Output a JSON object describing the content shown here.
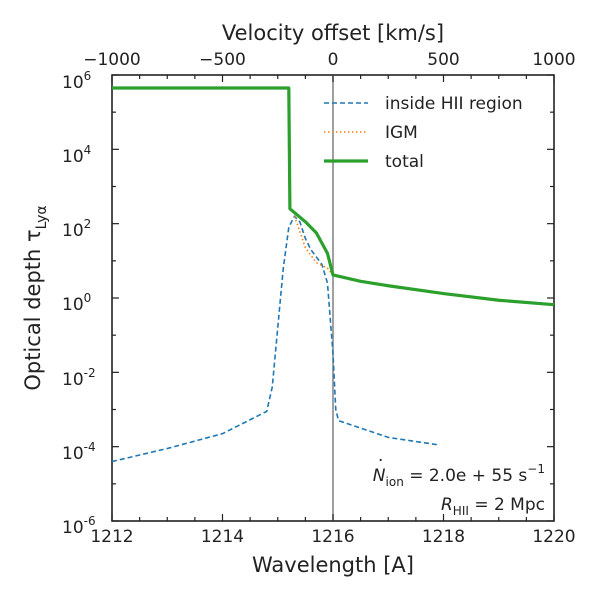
{
  "chart_data": {
    "type": "line",
    "xlabel": "Wavelength [A]",
    "ylabel_main": "Optical depth τ",
    "ylabel_sub": "Lyα",
    "x2label": "Velocity offset [km/s]",
    "xlim": [
      1212,
      1220
    ],
    "x2lim": [
      -1000,
      1000
    ],
    "ylim_log10": [
      -6,
      6
    ],
    "yscale": "log",
    "grid": false,
    "legend_position": "top-right",
    "x_ticks": [
      "1212",
      "1214",
      "1216",
      "1218",
      "1220"
    ],
    "x2_ticks": [
      "−1000",
      "−500",
      "0",
      "500",
      "1000"
    ],
    "y_tick_exponents": [
      "6",
      "4",
      "2",
      "0",
      "-2",
      "-4",
      "-6"
    ],
    "vline_x": 1216,
    "series": [
      {
        "name": "inside HII region",
        "color": "#1f77b4",
        "style": "dashed",
        "points": [
          [
            1212,
            -4.4
          ],
          [
            1213,
            -4.05
          ],
          [
            1214,
            -3.65
          ],
          [
            1214.8,
            -3.05
          ],
          [
            1214.9,
            -2.4
          ],
          [
            1215.0,
            -0.8
          ],
          [
            1215.1,
            0.8
          ],
          [
            1215.2,
            1.9
          ],
          [
            1215.3,
            2.2
          ],
          [
            1215.4,
            2.05
          ],
          [
            1215.5,
            1.6
          ],
          [
            1215.6,
            1.3
          ],
          [
            1215.7,
            1.1
          ],
          [
            1215.8,
            0.9
          ],
          [
            1215.9,
            0.4
          ],
          [
            1216.0,
            -1.5
          ],
          [
            1216.05,
            -3.0
          ],
          [
            1216.1,
            -3.3
          ],
          [
            1217.0,
            -3.75
          ],
          [
            1217.9,
            -3.95
          ]
        ]
      },
      {
        "name": "IGM",
        "color": "#ff7f0e",
        "style": "dotted",
        "points": [
          [
            1215.3,
            2.2
          ],
          [
            1215.35,
            2.0
          ],
          [
            1215.5,
            1.35
          ],
          [
            1215.7,
            0.95
          ],
          [
            1215.9,
            0.8
          ],
          [
            1216.0,
            0.62
          ]
        ]
      },
      {
        "name": "total",
        "color": "#2ca02c",
        "style": "solid",
        "points": [
          [
            1212,
            5.65
          ],
          [
            1215.2,
            5.65
          ],
          [
            1215.22,
            2.4
          ],
          [
            1215.3,
            2.3
          ],
          [
            1215.5,
            2.05
          ],
          [
            1215.7,
            1.75
          ],
          [
            1215.9,
            1.2
          ],
          [
            1216.0,
            0.62
          ],
          [
            1216.5,
            0.45
          ],
          [
            1217,
            0.33
          ],
          [
            1218,
            0.12
          ],
          [
            1219,
            -0.06
          ],
          [
            1220,
            -0.18
          ]
        ]
      }
    ]
  },
  "annotation": {
    "nion_text": "= 2.0e + 55 s",
    "nion_exp": "−1",
    "rhii_text": "= 2 Mpc"
  }
}
